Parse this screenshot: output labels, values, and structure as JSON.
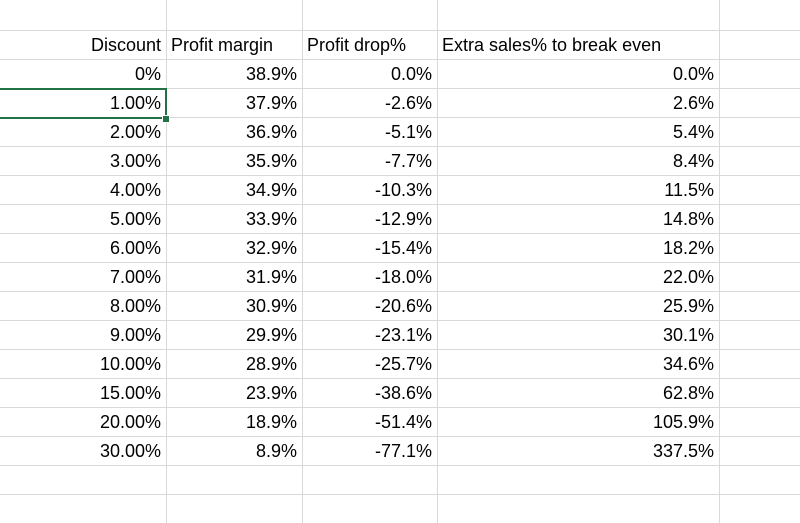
{
  "spreadsheet": {
    "headers": [
      "Discount",
      "Profit margin",
      "Profit drop%",
      "Extra sales% to break even"
    ],
    "rows": [
      [
        "0%",
        "38.9%",
        "0.0%",
        "0.0%"
      ],
      [
        "1.00%",
        "37.9%",
        "-2.6%",
        "2.6%"
      ],
      [
        "2.00%",
        "36.9%",
        "-5.1%",
        "5.4%"
      ],
      [
        "3.00%",
        "35.9%",
        "-7.7%",
        "8.4%"
      ],
      [
        "4.00%",
        "34.9%",
        "-10.3%",
        "11.5%"
      ],
      [
        "5.00%",
        "33.9%",
        "-12.9%",
        "14.8%"
      ],
      [
        "6.00%",
        "32.9%",
        "-15.4%",
        "18.2%"
      ],
      [
        "7.00%",
        "31.9%",
        "-18.0%",
        "22.0%"
      ],
      [
        "8.00%",
        "30.9%",
        "-20.6%",
        "25.9%"
      ],
      [
        "9.00%",
        "29.9%",
        "-23.1%",
        "30.1%"
      ],
      [
        "10.00%",
        "28.9%",
        "-25.7%",
        "34.6%"
      ],
      [
        "15.00%",
        "23.9%",
        "-38.6%",
        "62.8%"
      ],
      [
        "20.00%",
        "18.9%",
        "-51.4%",
        "105.9%"
      ],
      [
        "30.00%",
        "8.9%",
        "-77.1%",
        "337.5%"
      ]
    ],
    "selected_cell": "1.00%",
    "colors": {
      "gridline": "#d9d9d9",
      "selection": "#217346",
      "text": "#000000"
    }
  }
}
